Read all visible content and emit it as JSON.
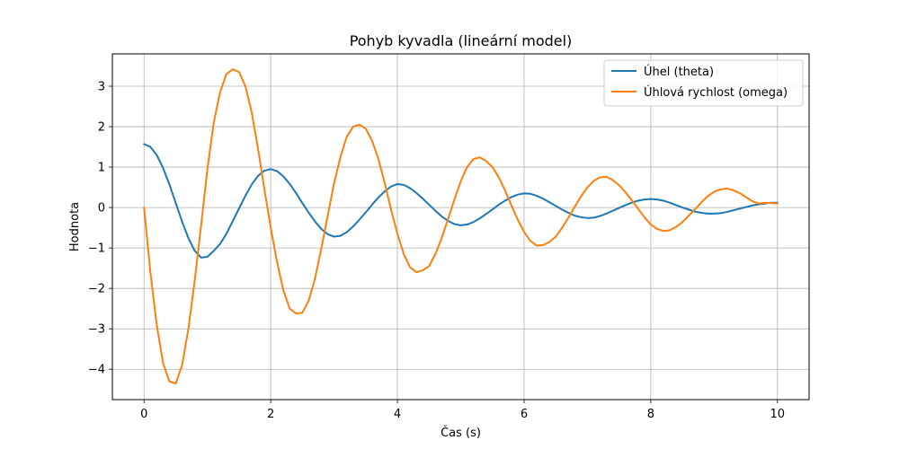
{
  "chart_data": {
    "type": "line",
    "title": "Pohyb kyvadla (lineární model)",
    "xlabel": "Čas (s)",
    "ylabel": "Hodnota",
    "xlim": [
      -0.5,
      10.5
    ],
    "ylim": [
      -4.75,
      3.8
    ],
    "xticks": [
      0,
      2,
      4,
      6,
      8,
      10
    ],
    "xtick_labels": [
      "0",
      "2",
      "4",
      "6",
      "8",
      "10"
    ],
    "yticks": [
      -4,
      -3,
      -2,
      -1,
      0,
      1,
      2,
      3
    ],
    "ytick_labels": [
      "−4",
      "−3",
      "−2",
      "−1",
      "0",
      "1",
      "2",
      "3"
    ],
    "grid": true,
    "legend_position": "upper right",
    "series": [
      {
        "name": "Úhel (theta)",
        "color": "#1f77b4",
        "x": [
          0,
          0.1,
          0.2,
          0.3,
          0.4,
          0.5,
          0.6,
          0.7,
          0.8,
          0.9,
          1.0,
          1.1,
          1.2,
          1.3,
          1.4,
          1.5,
          1.6,
          1.7,
          1.8,
          1.9,
          2.0,
          2.1,
          2.2,
          2.3,
          2.4,
          2.5,
          2.6,
          2.7,
          2.8,
          2.9,
          3.0,
          3.1,
          3.2,
          3.3,
          3.4,
          3.5,
          3.6,
          3.7,
          3.8,
          3.9,
          4.0,
          4.1,
          4.2,
          4.3,
          4.4,
          4.5,
          4.6,
          4.7,
          4.8,
          4.9,
          5.0,
          5.1,
          5.2,
          5.3,
          5.4,
          5.5,
          5.6,
          5.7,
          5.8,
          5.9,
          6.0,
          6.1,
          6.2,
          6.3,
          6.4,
          6.5,
          6.6,
          6.7,
          6.8,
          6.9,
          7.0,
          7.1,
          7.2,
          7.3,
          7.4,
          7.5,
          7.6,
          7.7,
          7.8,
          7.9,
          8.0,
          8.1,
          8.2,
          8.3,
          8.4,
          8.5,
          8.6,
          8.7,
          8.8,
          8.9,
          9.0,
          9.1,
          9.2,
          9.3,
          9.4,
          9.5,
          9.6,
          9.7,
          9.8,
          9.9,
          10.0
        ],
        "y": [
          1.571,
          1.5,
          1.299,
          0.98,
          0.572,
          0.114,
          -0.344,
          -0.756,
          -1.069,
          -1.238,
          -1.218,
          -1.072,
          -0.902,
          -0.647,
          -0.34,
          -0.021,
          0.29,
          0.57,
          0.784,
          0.911,
          0.95,
          0.9,
          0.772,
          0.583,
          0.356,
          0.11,
          -0.128,
          -0.346,
          -0.532,
          -0.66,
          -0.72,
          -0.7,
          -0.61,
          -0.47,
          -0.3,
          -0.12,
          0.07,
          0.25,
          0.4,
          0.52,
          0.58,
          0.56,
          0.48,
          0.36,
          0.22,
          0.07,
          -0.08,
          -0.22,
          -0.33,
          -0.41,
          -0.44,
          -0.42,
          -0.36,
          -0.27,
          -0.16,
          -0.05,
          0.07,
          0.17,
          0.26,
          0.32,
          0.35,
          0.34,
          0.29,
          0.22,
          0.13,
          0.04,
          -0.05,
          -0.13,
          -0.2,
          -0.24,
          -0.26,
          -0.25,
          -0.21,
          -0.15,
          -0.08,
          -0.01,
          0.06,
          0.12,
          0.17,
          0.2,
          0.21,
          0.2,
          0.17,
          0.12,
          0.06,
          0.0,
          -0.05,
          -0.1,
          -0.13,
          -0.15,
          -0.15,
          -0.14,
          -0.11,
          -0.07,
          -0.03,
          0.01,
          0.05,
          0.08,
          0.1,
          0.12,
          0.12
        ]
      },
      {
        "name": "Úhlová rychlost (omega)",
        "color": "#ff7f0e",
        "x": [
          0,
          0.1,
          0.2,
          0.3,
          0.4,
          0.5,
          0.6,
          0.7,
          0.8,
          0.9,
          1.0,
          1.1,
          1.2,
          1.3,
          1.4,
          1.5,
          1.6,
          1.7,
          1.8,
          1.9,
          2.0,
          2.1,
          2.2,
          2.3,
          2.4,
          2.5,
          2.6,
          2.7,
          2.8,
          2.9,
          3.0,
          3.1,
          3.2,
          3.3,
          3.4,
          3.5,
          3.6,
          3.7,
          3.8,
          3.9,
          4.0,
          4.1,
          4.2,
          4.3,
          4.4,
          4.5,
          4.6,
          4.7,
          4.8,
          4.9,
          5.0,
          5.1,
          5.2,
          5.3,
          5.4,
          5.5,
          5.6,
          5.7,
          5.8,
          5.9,
          6.0,
          6.1,
          6.2,
          6.3,
          6.4,
          6.5,
          6.6,
          6.7,
          6.8,
          6.9,
          7.0,
          7.1,
          7.2,
          7.3,
          7.4,
          7.5,
          7.6,
          7.7,
          7.8,
          7.9,
          8.0,
          8.1,
          8.2,
          8.3,
          8.4,
          8.5,
          8.6,
          8.7,
          8.8,
          8.9,
          9.0,
          9.1,
          9.2,
          9.3,
          9.4,
          9.5,
          9.6,
          9.7,
          9.8,
          9.9,
          10.0
        ],
        "y": [
          0.0,
          -1.6,
          -2.9,
          -3.85,
          -4.3,
          -4.35,
          -3.9,
          -3.0,
          -1.8,
          -0.45,
          0.95,
          2.1,
          2.85,
          3.3,
          3.42,
          3.35,
          3.0,
          2.35,
          1.45,
          0.45,
          -0.5,
          -1.35,
          -2.05,
          -2.5,
          -2.62,
          -2.6,
          -2.3,
          -1.75,
          -1.0,
          -0.2,
          0.6,
          1.25,
          1.75,
          2.0,
          2.05,
          1.95,
          1.65,
          1.2,
          0.6,
          -0.05,
          -0.65,
          -1.15,
          -1.48,
          -1.6,
          -1.55,
          -1.45,
          -1.15,
          -0.75,
          -0.28,
          0.2,
          0.65,
          1.0,
          1.2,
          1.24,
          1.15,
          1.0,
          0.75,
          0.42,
          0.05,
          -0.3,
          -0.6,
          -0.83,
          -0.94,
          -0.93,
          -0.85,
          -0.72,
          -0.5,
          -0.25,
          0.02,
          0.28,
          0.5,
          0.66,
          0.75,
          0.76,
          0.68,
          0.55,
          0.38,
          0.18,
          -0.03,
          -0.24,
          -0.42,
          -0.53,
          -0.58,
          -0.56,
          -0.48,
          -0.36,
          -0.2,
          -0.04,
          0.13,
          0.28,
          0.39,
          0.45,
          0.47,
          0.43,
          0.36,
          0.26,
          0.16,
          0.1,
          0.12,
          0.11,
          0.1
        ]
      }
    ]
  }
}
